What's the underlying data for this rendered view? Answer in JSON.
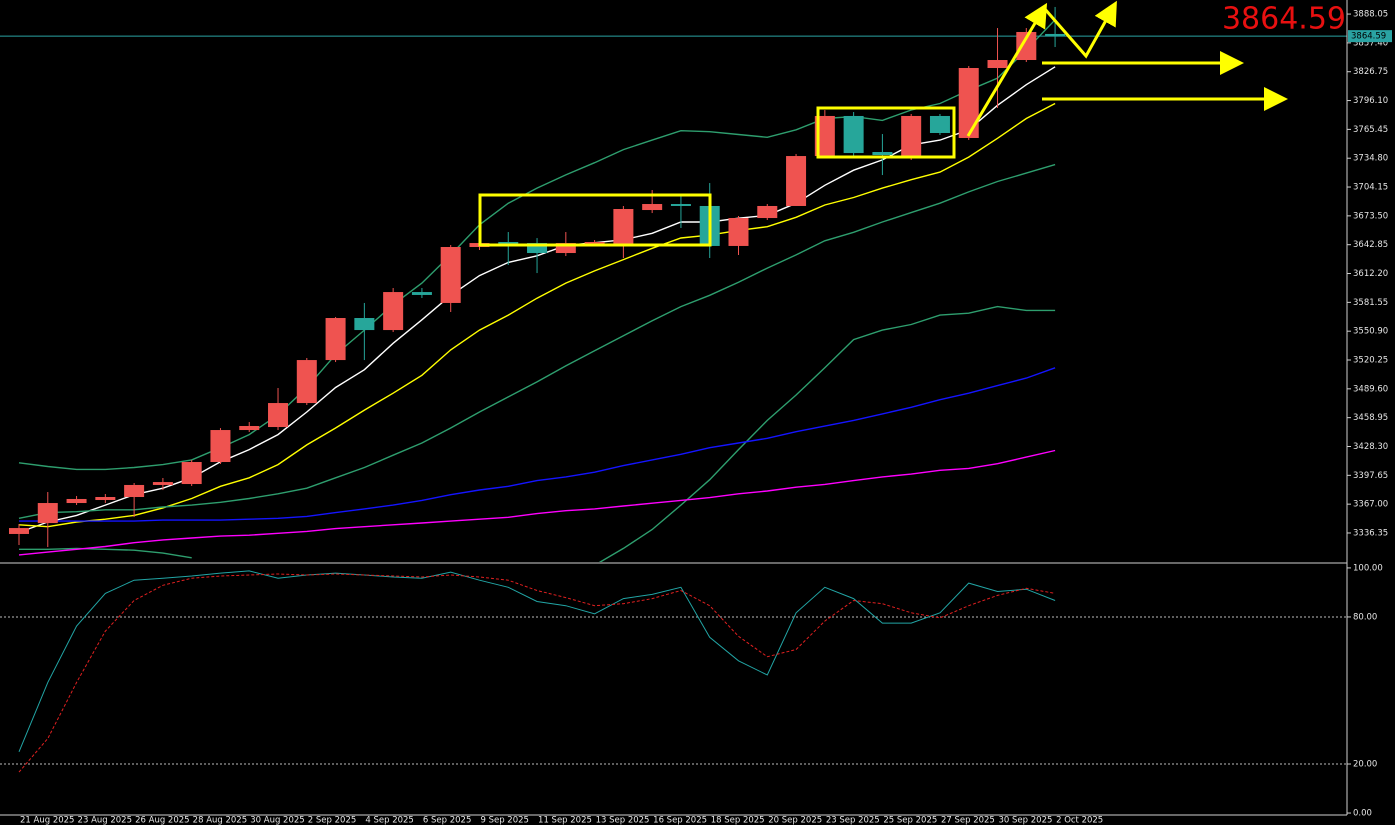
{
  "chart_data": [
    {
      "type": "candlestick",
      "categories": [
        "21 Aug 2025",
        null,
        "23 Aug 2025",
        null,
        "26 Aug 2025",
        null,
        "28 Aug 2025",
        null,
        "30 Aug 2025",
        null,
        "2 Sep 2025",
        null,
        "4 Sep 2025",
        null,
        "6 Sep 2025",
        null,
        "9 Sep 2025",
        null,
        "11 Sep 2025",
        null,
        "13 Sep 2025",
        null,
        "16 Sep 2025",
        null,
        "18 Sep 2025",
        null,
        "20 Sep 2025",
        null,
        "23 Sep 2025",
        null,
        "25 Sep 2025",
        null,
        "27 Sep 2025",
        null,
        "30 Sep 2025",
        null,
        "2 Oct 2025"
      ],
      "open": [
        3335.3,
        3346.9,
        3368.2,
        3371.4,
        3374.6,
        3387.4,
        3388.4,
        3411.8,
        3445.8,
        3449.0,
        3474.5,
        3520.2,
        3564.9,
        3552.1,
        3592.5,
        3580.9,
        3640.4,
        3645.7,
        3644.6,
        3634.0,
        3643.6,
        3642.5,
        3679.7,
        3686.1,
        3684.0,
        3641.5,
        3671.2,
        3684.0,
        3737.1,
        3779.7,
        3741.4,
        3736.1,
        3779.7,
        3756.3,
        3830.7,
        3839.2,
        3866.9
      ],
      "high": [
        3345.9,
        3379.9,
        3375.7,
        3377.8,
        3389.5,
        3394.8,
        3413.9,
        3447.9,
        3454.3,
        3490.5,
        3522.4,
        3566.0,
        3580.9,
        3596.8,
        3596.8,
        3642.5,
        3647.8,
        3656.3,
        3649.9,
        3656.3,
        3647.8,
        3684.0,
        3701.0,
        3695.7,
        3708.4,
        3673.4,
        3686.1,
        3739.3,
        3786.0,
        3783.9,
        3760.5,
        3781.8,
        3781.8,
        3832.8,
        3873.2,
        3873.2,
        3895.6
      ],
      "low": [
        3323.6,
        3321.4,
        3366.1,
        3368.2,
        3353.3,
        3382.0,
        3386.3,
        3409.7,
        3443.7,
        3445.8,
        3472.4,
        3518.1,
        3520.2,
        3550.0,
        3586.2,
        3571.3,
        3637.2,
        3621.3,
        3612.7,
        3630.8,
        3641.5,
        3628.7,
        3676.5,
        3660.6,
        3628.7,
        3631.9,
        3669.1,
        3684.0,
        3735.0,
        3737.1,
        3716.9,
        3732.9,
        3759.5,
        3754.2,
        3788.2,
        3837.1,
        3853.0
      ],
      "close": [
        3341.6,
        3368.2,
        3372.5,
        3374.6,
        3387.4,
        3390.5,
        3411.8,
        3445.8,
        3450.1,
        3474.5,
        3520.2,
        3564.9,
        3552.1,
        3592.5,
        3589.4,
        3640.4,
        3644.6,
        3643.6,
        3634.0,
        3644.6,
        3645.7,
        3680.8,
        3686.1,
        3684.0,
        3641.5,
        3671.2,
        3684.0,
        3737.1,
        3779.7,
        3740.3,
        3738.2,
        3779.7,
        3761.6,
        3830.7,
        3839.2,
        3869.0,
        3864.59
      ],
      "up_color": "#ef5350",
      "down_color": "#26a69a",
      "series": [
        {
          "color": "#ffffff",
          "values": [
            3337,
            3348,
            3355,
            3366,
            3377,
            3384,
            3395,
            3412,
            3425,
            3441,
            3465,
            3491,
            3510,
            3538,
            3563,
            3589,
            3610,
            3624,
            3631,
            3642,
            3645,
            3648,
            3655,
            3667,
            3667,
            3671,
            3674,
            3687,
            3706,
            3722,
            3733,
            3749,
            3754,
            3765,
            3791,
            3813,
            3832
          ]
        },
        {
          "color": "#ffff00",
          "values": [
            3345,
            3343,
            3348,
            3351,
            3355,
            3363,
            3373,
            3386,
            3395,
            3409,
            3430,
            3448,
            3467,
            3485,
            3504,
            3531,
            3552,
            3568,
            3586,
            3602,
            3615,
            3627,
            3639,
            3650,
            3653,
            3658,
            3662,
            3672,
            3685,
            3693,
            3703,
            3712,
            3720,
            3736,
            3756,
            3777,
            3793
          ]
        },
        {
          "color": "#2e9e6e",
          "values": [
            3411,
            3407,
            3404,
            3404,
            3406,
            3409,
            3414,
            3427,
            3441,
            3462,
            3491,
            3526,
            3552,
            3579,
            3602,
            3632,
            3664,
            3687,
            3703,
            3717,
            3730,
            3744,
            3754,
            3764,
            3763,
            3760,
            3757,
            3765,
            3777,
            3779,
            3775,
            3786,
            3793,
            3807,
            3820,
            3850,
            3882
          ]
        },
        {
          "color": "#2e9e6e",
          "values": [
            3352,
            3358,
            3359,
            3361,
            3361,
            3364,
            3366,
            3369,
            3373,
            3378,
            3384,
            3395,
            3406,
            3419,
            3432,
            3448,
            3465,
            3481,
            3497,
            3514,
            3530,
            3546,
            3562,
            3577,
            3589,
            3603,
            3618,
            3632,
            3647,
            3656,
            3667,
            3677,
            3687,
            3699,
            3710,
            3719,
            3728
          ]
        },
        {
          "color": "#2e9e6e",
          "values": [
            3319,
            3319,
            3320,
            3319,
            3318,
            3315,
            3310,
            null,
            null,
            null,
            null,
            null,
            null,
            null,
            null,
            null,
            null,
            null,
            null,
            null,
            3302,
            3320,
            3340,
            3366,
            3393,
            3425,
            3456,
            3483,
            3512,
            3542,
            3552,
            3558,
            3568,
            3570,
            3577,
            3573,
            3573
          ]
        },
        {
          "color": "#1414ff",
          "values": [
            3349,
            3349,
            3349,
            3349,
            3349,
            3350,
            3350,
            3350,
            3351,
            3352,
            3354,
            3358,
            3362,
            3366,
            3371,
            3377,
            3382,
            3386,
            3392,
            3396,
            3401,
            3408,
            3414,
            3420,
            3427,
            3432,
            3437,
            3444,
            3450,
            3456,
            3463,
            3470,
            3478,
            3485,
            3493,
            3501,
            3512
          ]
        },
        {
          "color": "#ff00ff",
          "values": [
            3313,
            3316,
            3319,
            3322,
            3326,
            3329,
            3331,
            3333,
            3334,
            3336,
            3338,
            3341,
            3343,
            3345,
            3347,
            3349,
            3351,
            3353,
            3357,
            3360,
            3362,
            3365,
            3368,
            3371,
            3374,
            3378,
            3381,
            3385,
            3388,
            3392,
            3396,
            3399,
            3403,
            3405,
            3410,
            3417,
            3424
          ]
        }
      ],
      "last_price": 3864.59,
      "last_price_color": "#e81010",
      "last_price_line_color": "#2aa3a3",
      "ylim": [
        3305.5,
        3903
      ],
      "yticks": [
        3336.35,
        {
          "value": 3367,
          "label": "3367.00"
        },
        3397.65,
        {
          "value": 3428.3,
          "label": "3428.30"
        },
        3458.95,
        {
          "value": 3489.6,
          "label": "3489.60"
        },
        3520.25,
        {
          "value": 3550.9,
          "label": "3550.90"
        },
        3581.55,
        {
          "value": 3612.2,
          "label": "3612.20"
        },
        3642.85,
        {
          "value": 3673.5,
          "label": "3673.50"
        },
        3704.15,
        {
          "value": 3734.8,
          "label": "3734.80"
        },
        3765.45,
        {
          "value": 3796.1,
          "label": "3796.10"
        },
        3826.75,
        {
          "value": 3857.4,
          "label": "3857.40"
        },
        3888.05
      ]
    },
    {
      "type": "line",
      "series": [
        {
          "color": "#22a5a5",
          "dash": false,
          "values": [
            25.0,
            53.3,
            76.3,
            89.6,
            95.0,
            95.8,
            96.7,
            97.9,
            98.8,
            95.8,
            97.1,
            97.9,
            97.1,
            96.3,
            95.8,
            98.3,
            95.0,
            92.1,
            86.3,
            84.6,
            81.3,
            87.5,
            89.2,
            92.1,
            71.7,
            62.1,
            56.3,
            81.7,
            92.1,
            87.5,
            77.5,
            77.5,
            81.7,
            93.8,
            90.4,
            91.3,
            86.7
          ]
        },
        {
          "color": "#e02020",
          "dash": true,
          "values": [
            16.7,
            30.4,
            53.3,
            74.2,
            86.7,
            92.9,
            95.8,
            96.7,
            97.1,
            97.5,
            97.1,
            97.5,
            97.1,
            96.7,
            96.3,
            97.1,
            96.3,
            95.0,
            90.8,
            87.9,
            84.6,
            85.4,
            87.5,
            90.8,
            84.6,
            72.1,
            63.8,
            66.7,
            78.3,
            86.7,
            85.4,
            81.7,
            79.6,
            84.6,
            88.8,
            91.7,
            89.6
          ]
        }
      ],
      "ylim": [
        -0.8,
        101.6
      ],
      "yticks": [
        {
          "value": 100,
          "label": "100.00"
        },
        {
          "value": 80,
          "label": "80.00"
        },
        {
          "value": 20,
          "label": "20.00"
        },
        {
          "value": 0,
          "label": "0.00"
        }
      ],
      "levels": [
        80,
        20
      ]
    }
  ]
}
